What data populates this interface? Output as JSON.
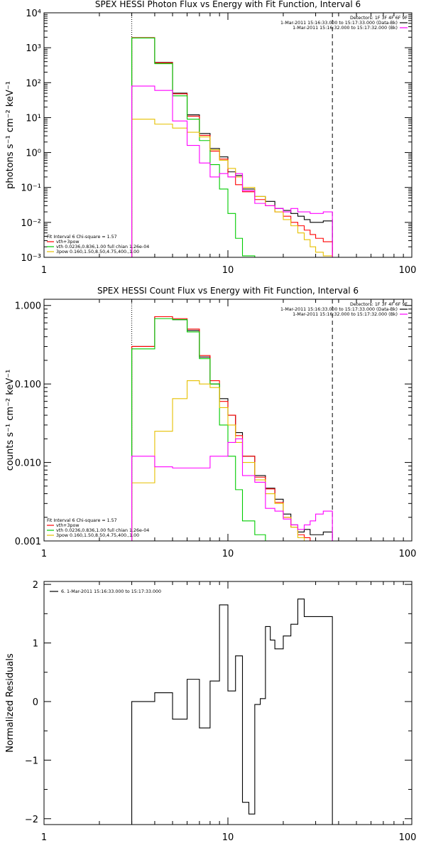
{
  "chart_data": [
    {
      "type": "line",
      "title": "SPEX HESSI Photon Flux vs Energy with Fit Function, Interval 6",
      "ylabel": "photons s⁻¹ cm⁻² keV⁻¹",
      "xlabel": "",
      "xscale": "log",
      "yscale": "log",
      "xlim": [
        1,
        100
      ],
      "ylim": [
        0.001,
        10000
      ],
      "x_ticks": [
        "1",
        "10",
        "100"
      ],
      "y_ticks": [
        "10⁻³",
        "10⁻²",
        "10⁻¹",
        "10⁰",
        "10¹",
        "10²",
        "10³",
        "10⁴"
      ],
      "vlines": [
        {
          "x": 3,
          "style": "dotted"
        },
        {
          "x": 37,
          "style": "dashed"
        }
      ],
      "legend_top": {
        "lines": [
          "Detectors: 1F 3F 4F 6F 9F",
          "1-Mar-2011 15:16:33.000 to 15:17:33.000 (Data-Bk)",
          "1-Mar-2011 15:16:32.000 to 15:17:32.000 (Bk)"
        ],
        "colors": [
          "",
          "#000000",
          "#ff00ff"
        ]
      },
      "legend_bottom": {
        "lines": [
          "Fit Interval  6    Chi-square = 1.57",
          "vth+3pow",
          "vth 0.0236,0.836,1.00  full chian 1.26e-04",
          "3pow 0.160,1.50,8.50,4.75,400.,1.00"
        ],
        "colors": [
          "",
          "#ff0000",
          "#00cc00",
          "#e6c000"
        ]
      },
      "x_edges": [
        3.0,
        3.5,
        4.0,
        4.5,
        5.0,
        5.5,
        6.0,
        6.5,
        7.0,
        7.5,
        8.0,
        8.5,
        9.0,
        9.5,
        10.0,
        10.5,
        11.0,
        11.5,
        12.0,
        13.0,
        14.0,
        15.0,
        16.0,
        17.0,
        18.0,
        20.0,
        22.0,
        24.0,
        26.0,
        28.0,
        30.0,
        33.0,
        37.0
      ],
      "series": [
        {
          "color": "#000000",
          "values": [
            1900,
            1900,
            380,
            380,
            50,
            50,
            12,
            12,
            3.5,
            3.5,
            1.3,
            1.3,
            0.75,
            0.75,
            0.28,
            0.28,
            0.22,
            0.22,
            0.09,
            0.09,
            0.055,
            0.055,
            0.04,
            0.04,
            0.025,
            0.022,
            0.018,
            0.015,
            0.012,
            0.01,
            0.01,
            0.011
          ]
        },
        {
          "color": "#ff0000",
          "values": [
            1950,
            1950,
            370,
            370,
            48,
            48,
            11,
            11,
            3.1,
            3.1,
            1.1,
            1.1,
            0.65,
            0.65,
            0.2,
            0.2,
            0.12,
            0.12,
            0.075,
            0.075,
            0.045,
            0.045,
            0.03,
            0.03,
            0.02,
            0.015,
            0.01,
            0.008,
            0.006,
            0.0045,
            0.0035,
            0.0028
          ]
        },
        {
          "color": "#00cc00",
          "values": [
            1900,
            1900,
            350,
            350,
            42,
            42,
            9,
            9,
            2.2,
            2.2,
            0.45,
            0.45,
            0.09,
            0.09,
            0.018,
            0.018,
            0.0035,
            0.0035,
            0.0011,
            0.0011,
            0.0007,
            0.0007,
            0.0006,
            0.0006,
            0.0006,
            0.0006,
            0.0006,
            0.0006,
            0.0006,
            0.0006,
            0.0006,
            0.0006
          ]
        },
        {
          "color": "#e6c000",
          "values": [
            9,
            9,
            6.5,
            6.5,
            5,
            5,
            3.8,
            3.8,
            2.8,
            2.8,
            1.2,
            1.2,
            0.6,
            0.6,
            0.35,
            0.35,
            0.2,
            0.2,
            0.1,
            0.1,
            0.055,
            0.055,
            0.03,
            0.03,
            0.02,
            0.012,
            0.008,
            0.005,
            0.0032,
            0.002,
            0.0014,
            0.0011
          ]
        },
        {
          "color": "#ff00ff",
          "values": [
            80,
            80,
            60,
            60,
            8,
            8,
            1.6,
            1.6,
            0.5,
            0.5,
            0.2,
            0.2,
            0.25,
            0.25,
            0.2,
            0.2,
            0.25,
            0.25,
            0.08,
            0.08,
            0.035,
            0.035,
            0.03,
            0.03,
            0.025,
            0.02,
            0.025,
            0.02,
            0.02,
            0.018,
            0.018,
            0.02
          ]
        }
      ]
    },
    {
      "type": "line",
      "title": "SPEX HESSI Count Flux vs Energy with Fit Function, Interval 6",
      "ylabel": "counts s⁻¹ cm⁻² keV⁻¹",
      "xlabel": "",
      "xscale": "log",
      "yscale": "log",
      "xlim": [
        1,
        100
      ],
      "ylim": [
        0.001,
        1.2
      ],
      "x_ticks": [
        "1",
        "10",
        "100"
      ],
      "y_ticks": [
        "0.001",
        "0.010",
        "0.100",
        "1.000"
      ],
      "vlines": [
        {
          "x": 3,
          "style": "dotted"
        },
        {
          "x": 37,
          "style": "dashed"
        }
      ],
      "legend_top": {
        "lines": [
          "Detectors: 1F 3F 4F 6F 9F",
          "1-Mar-2011 15:16:33.000 to 15:17:33.000 (Data-Bk)",
          "1-Mar-2011 15:16:32.000 to 15:17:32.000 (Bk)"
        ],
        "colors": [
          "",
          "#000000",
          "#ff00ff"
        ]
      },
      "legend_bottom": {
        "lines": [
          "Fit Interval  6    Chi-square = 1.57",
          "vth+3pow",
          "vth 0.0236,0.836,1.00  full chian 1.26e-04",
          "3pow 0.160,1.50,8.50,4.75,400.,1.00"
        ],
        "colors": [
          "",
          "#ff0000",
          "#00cc00",
          "#e6c000"
        ]
      },
      "x_edges": [
        3.0,
        3.5,
        4.0,
        4.5,
        5.0,
        5.5,
        6.0,
        6.5,
        7.0,
        7.5,
        8.0,
        8.5,
        9.0,
        9.5,
        10.0,
        10.5,
        11.0,
        11.5,
        12.0,
        13.0,
        14.0,
        15.0,
        16.0,
        17.0,
        18.0,
        20.0,
        22.0,
        24.0,
        26.0,
        28.0,
        30.0,
        33.0,
        37.0
      ],
      "series": [
        {
          "color": "#000000",
          "values": [
            0.3,
            0.3,
            0.72,
            0.72,
            0.66,
            0.66,
            0.48,
            0.48,
            0.22,
            0.22,
            0.1,
            0.1,
            0.065,
            0.065,
            0.04,
            0.04,
            0.024,
            0.024,
            0.012,
            0.012,
            0.0068,
            0.0068,
            0.0047,
            0.0047,
            0.0034,
            0.0022,
            0.0016,
            0.0013,
            0.0014,
            0.0012,
            0.0012,
            0.0013
          ]
        },
        {
          "color": "#ff0000",
          "values": [
            0.3,
            0.3,
            0.72,
            0.72,
            0.68,
            0.68,
            0.5,
            0.5,
            0.23,
            0.23,
            0.11,
            0.11,
            0.06,
            0.06,
            0.04,
            0.04,
            0.022,
            0.022,
            0.012,
            0.012,
            0.0065,
            0.0065,
            0.0046,
            0.0046,
            0.0031,
            0.002,
            0.0015,
            0.0012,
            0.0011,
            0.001,
            0.001,
            0.001
          ]
        },
        {
          "color": "#00cc00",
          "values": [
            0.28,
            0.28,
            0.68,
            0.68,
            0.66,
            0.66,
            0.46,
            0.46,
            0.21,
            0.21,
            0.1,
            0.1,
            0.03,
            0.03,
            0.012,
            0.012,
            0.0045,
            0.0045,
            0.0018,
            0.0018,
            0.0012,
            0.0012,
            0.0009,
            0.0009,
            0.0009,
            0.0009,
            0.0009,
            0.0009,
            0.0009,
            0.0009,
            0.0009,
            0.0009
          ]
        },
        {
          "color": "#e6c000",
          "values": [
            0.0055,
            0.0055,
            0.025,
            0.025,
            0.065,
            0.065,
            0.11,
            0.11,
            0.1,
            0.1,
            0.09,
            0.09,
            0.05,
            0.05,
            0.03,
            0.03,
            0.018,
            0.018,
            0.01,
            0.01,
            0.006,
            0.006,
            0.004,
            0.004,
            0.003,
            0.002,
            0.0015,
            0.0011,
            0.0009,
            0.0009,
            0.0009,
            0.0009
          ]
        },
        {
          "color": "#ff00ff",
          "values": [
            0.012,
            0.012,
            0.0088,
            0.0088,
            0.0085,
            0.0085,
            0.0085,
            0.0085,
            0.0085,
            0.0085,
            0.012,
            0.012,
            0.012,
            0.012,
            0.018,
            0.018,
            0.02,
            0.02,
            0.0068,
            0.0068,
            0.0056,
            0.0056,
            0.0026,
            0.0026,
            0.0024,
            0.0019,
            0.0016,
            0.0014,
            0.0016,
            0.0018,
            0.0022,
            0.0024
          ]
        }
      ]
    },
    {
      "type": "line",
      "title": "",
      "ylabel": "Normalized Residuals",
      "xlabel": "",
      "xscale": "log",
      "yscale": "linear",
      "xlim": [
        1,
        100
      ],
      "ylim": [
        -2.1,
        2.05
      ],
      "x_ticks": [
        "1",
        "10",
        "100"
      ],
      "y_ticks": [
        "−2",
        "−1",
        "0",
        "1",
        "2"
      ],
      "legend": "6. 1-Mar-2011 15:16:33.000 to 15:17:33.000",
      "x_edges": [
        3.0,
        3.5,
        4.0,
        4.5,
        5.0,
        5.5,
        6.0,
        6.5,
        7.0,
        7.5,
        8.0,
        8.5,
        9.0,
        9.5,
        10.0,
        10.5,
        11.0,
        11.5,
        12.0,
        13.0,
        14.0,
        15.0,
        16.0,
        17.0,
        18.0,
        20.0,
        22.0,
        24.0,
        26.0,
        28.0,
        30.0,
        33.0,
        37.0
      ],
      "series": [
        {
          "color": "#000000",
          "values": [
            0.0,
            0.0,
            0.15,
            0.15,
            -0.3,
            -0.3,
            0.38,
            0.38,
            -0.45,
            -0.45,
            0.35,
            0.35,
            1.65,
            1.65,
            0.18,
            0.18,
            0.78,
            0.78,
            -1.72,
            -1.92,
            -0.05,
            0.05,
            1.28,
            1.05,
            0.9,
            1.12,
            1.32,
            1.75,
            1.45,
            1.45,
            1.45,
            1.45
          ]
        }
      ]
    }
  ]
}
